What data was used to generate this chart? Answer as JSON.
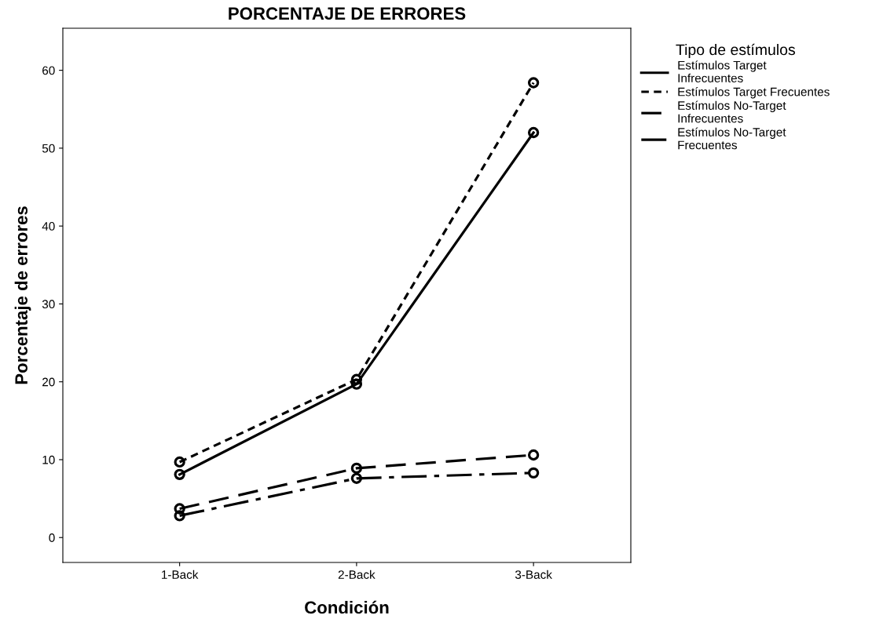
{
  "chart_data": {
    "type": "line",
    "title": "PORCENTAJE DE ERRORES",
    "xlabel": "Condición",
    "ylabel": "Porcentaje de errores",
    "legend_title": "Tipo de estímulos",
    "categories": [
      "1-Back",
      "2-Back",
      "3-Back"
    ],
    "series": [
      {
        "name": "Estímulos Target\nInfrecuentes",
        "color": "#000000",
        "line_style": "solid",
        "values": [
          8.1,
          19.7,
          52.0
        ]
      },
      {
        "name": "Estímulos Target Frecuentes",
        "color": "#000000",
        "line_style": "dotted",
        "values": [
          9.7,
          20.3,
          58.4
        ]
      },
      {
        "name": "Estímulos No-Target\nInfrecuentes",
        "color": "#000000",
        "line_style": "dashed",
        "values": [
          3.7,
          8.9,
          10.6
        ]
      },
      {
        "name": "Estímulos No-Target\nFrecuentes",
        "color": "#000000",
        "line_style": "dashdot",
        "values": [
          2.8,
          7.6,
          8.3
        ]
      }
    ],
    "ylim": [
      -3.2,
      65.4
    ],
    "yticks": [
      0,
      10,
      20,
      30,
      40,
      50,
      60
    ],
    "grid": false,
    "legend": "right",
    "marker": "circle"
  }
}
